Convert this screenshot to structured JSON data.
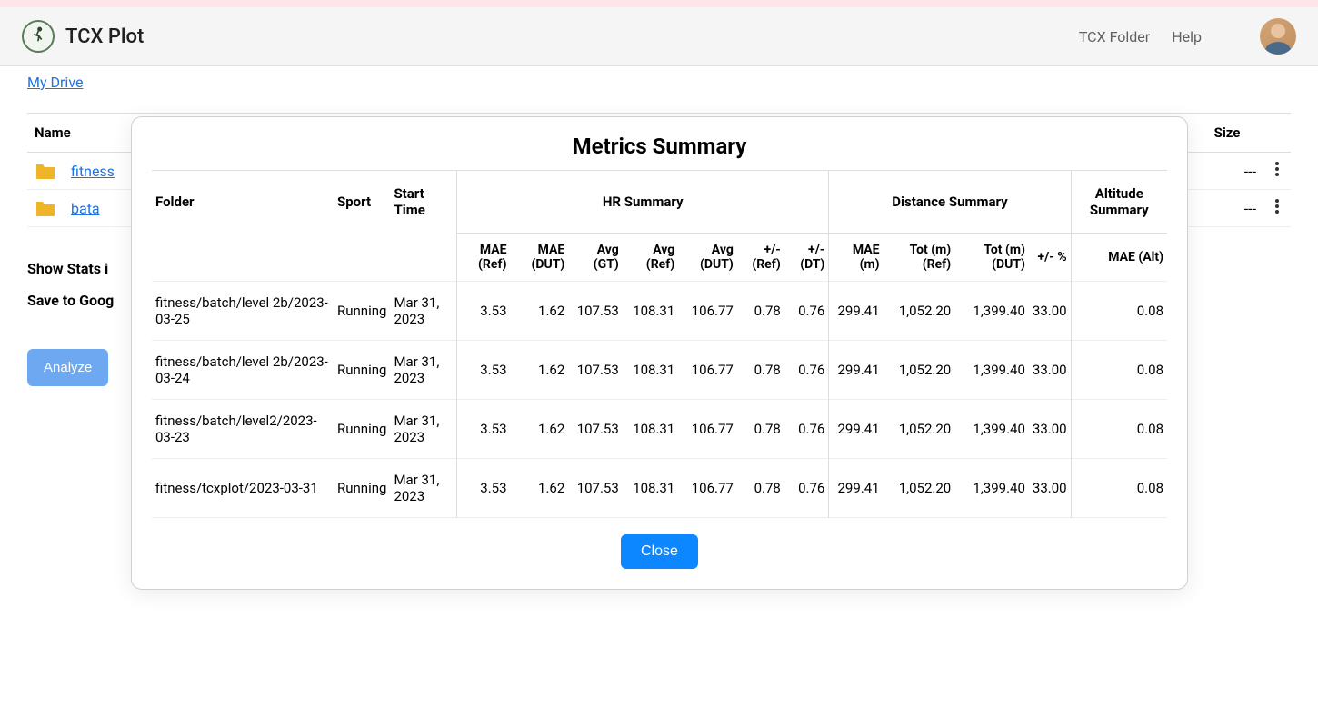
{
  "header": {
    "app_title": "TCX Plot",
    "nav_folder": "TCX Folder",
    "nav_help": "Help"
  },
  "breadcrumb": {
    "my_drive": "My Drive"
  },
  "file_list": {
    "col_name": "Name",
    "col_size": "Size",
    "rows": [
      {
        "name": "fitness",
        "size": "---"
      },
      {
        "name": "bata",
        "size": "---"
      }
    ]
  },
  "sidebar": {
    "show_stats": "Show Stats i",
    "save_google": "Save to Goog",
    "analyze": "Analyze"
  },
  "modal": {
    "title": "Metrics Summary",
    "close": "Close",
    "group_headers": {
      "folder": "Folder",
      "sport": "Sport",
      "start_time": "Start Time",
      "hr_summary": "HR Summary",
      "distance_summary": "Distance Summary",
      "altitude_summary": "Altitude Summary"
    },
    "sub_headers": {
      "mae_ref": "MAE (Ref)",
      "mae_dut": "MAE (DUT)",
      "avg_gt": "Avg (GT)",
      "avg_ref": "Avg (Ref)",
      "avg_dut": "Avg (DUT)",
      "pm_ref": "+/- (Ref)",
      "pm_dt": "+/- (DT)",
      "mae_m": "MAE (m)",
      "tot_m_ref": "Tot (m) (Ref)",
      "tot_m_dut": "Tot (m) (DUT)",
      "pm_pct": "+/- %",
      "mae_alt": "MAE (Alt)"
    },
    "rows": [
      {
        "folder": "fitness/batch/level 2b/2023-03-25",
        "sport": "Running",
        "start_time": "Mar 31, 2023",
        "mae_ref": "3.53",
        "mae_dut": "1.62",
        "avg_gt": "107.53",
        "avg_ref": "108.31",
        "avg_dut": "106.77",
        "pm_ref": "0.78",
        "pm_dt": "0.76",
        "mae_m": "299.41",
        "tot_m_ref": "1,052.20",
        "tot_m_dut": "1,399.40",
        "pm_pct": "33.00",
        "mae_alt": "0.08"
      },
      {
        "folder": "fitness/batch/level 2b/2023-03-24",
        "sport": "Running",
        "start_time": "Mar 31, 2023",
        "mae_ref": "3.53",
        "mae_dut": "1.62",
        "avg_gt": "107.53",
        "avg_ref": "108.31",
        "avg_dut": "106.77",
        "pm_ref": "0.78",
        "pm_dt": "0.76",
        "mae_m": "299.41",
        "tot_m_ref": "1,052.20",
        "tot_m_dut": "1,399.40",
        "pm_pct": "33.00",
        "mae_alt": "0.08"
      },
      {
        "folder": "fitness/batch/level2/2023-03-23",
        "sport": "Running",
        "start_time": "Mar 31, 2023",
        "mae_ref": "3.53",
        "mae_dut": "1.62",
        "avg_gt": "107.53",
        "avg_ref": "108.31",
        "avg_dut": "106.77",
        "pm_ref": "0.78",
        "pm_dt": "0.76",
        "mae_m": "299.41",
        "tot_m_ref": "1,052.20",
        "tot_m_dut": "1,399.40",
        "pm_pct": "33.00",
        "mae_alt": "0.08"
      },
      {
        "folder": "fitness/tcxplot/2023-03-31",
        "sport": "Running",
        "start_time": "Mar 31, 2023",
        "mae_ref": "3.53",
        "mae_dut": "1.62",
        "avg_gt": "107.53",
        "avg_ref": "108.31",
        "avg_dut": "106.77",
        "pm_ref": "0.78",
        "pm_dt": "0.76",
        "mae_m": "299.41",
        "tot_m_ref": "1,052.20",
        "tot_m_dut": "1,399.40",
        "pm_pct": "33.00",
        "mae_alt": "0.08"
      }
    ]
  },
  "colors": {
    "pink_bar": "#ffe4e9",
    "header_bg": "#f5f5f5",
    "link": "#1a73e8",
    "analyze_btn": "#6ea8f0",
    "close_btn": "#0d87ff",
    "folder_icon": "#f0b429"
  }
}
